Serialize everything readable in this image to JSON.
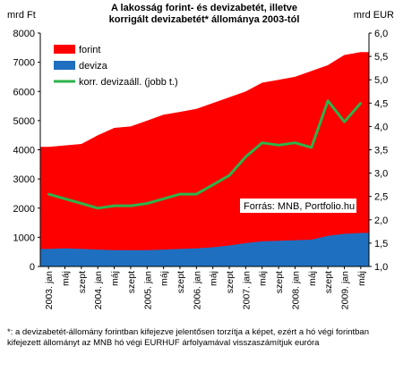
{
  "chart_data": {
    "type": "area",
    "title": "A lakosság forint- és devizabetét, illetve korrigált devizabetét* állománya 2003-tól",
    "title_lines": [
      "A lakosság forint- és devizabetét, illetve",
      "korrigált devizabetét* állománya 2003-tól"
    ],
    "ylabel_left": "mrd Ft",
    "ylabel_right": "mrd EUR",
    "ylim_left": [
      0,
      8000
    ],
    "ylim_right": [
      1.0,
      6.0
    ],
    "yticks_left": [
      "0",
      "1000",
      "2000",
      "3000",
      "4000",
      "5000",
      "6000",
      "7000",
      "8000"
    ],
    "yticks_right": [
      "1,0",
      "1,5",
      "2,0",
      "2,5",
      "3,0",
      "3,5",
      "4,0",
      "4,5",
      "5,0",
      "5,5",
      "6,0"
    ],
    "categories": [
      "2003. jan",
      "máj",
      "szept",
      "2004. jan",
      "máj",
      "szept",
      "2005. jan",
      "máj",
      "szept",
      "2006. jan",
      "máj",
      "szept",
      "2007. jan",
      "máj",
      "szept",
      "2008. jan",
      "máj",
      "szept",
      "2009. jan",
      "máj"
    ],
    "series": [
      {
        "name": "forint",
        "color": "#ff0000",
        "kind": "stacked-area",
        "axis": "left",
        "values": [
          4100,
          4150,
          4200,
          4500,
          4750,
          4800,
          5000,
          5200,
          5300,
          5400,
          5600,
          5800,
          6000,
          6300,
          6400,
          6500,
          6700,
          6900,
          7250,
          7350
        ]
      },
      {
        "name": "deviza",
        "color": "#1f6fc0",
        "kind": "area",
        "axis": "left",
        "values": [
          600,
          620,
          600,
          580,
          560,
          560,
          560,
          580,
          600,
          620,
          660,
          720,
          800,
          860,
          880,
          900,
          920,
          1050,
          1120,
          1150
        ]
      },
      {
        "name": "korr. devizaáll. (jobb t.)",
        "color": "#2db34a",
        "kind": "line",
        "axis": "right",
        "values": [
          2.55,
          2.45,
          2.35,
          2.25,
          2.3,
          2.3,
          2.35,
          2.45,
          2.55,
          2.55,
          2.75,
          2.95,
          3.35,
          3.65,
          3.6,
          3.65,
          3.55,
          4.55,
          4.1,
          4.5
        ]
      }
    ],
    "legend": [
      "forint",
      "deviza",
      "korr. devizaáll. (jobb t.)"
    ],
    "legend_position": "top-left",
    "annotation": "Forrás: MNB, Portfolio.hu",
    "grid": false
  },
  "footnote": "*: a devizabetét-állomány forintban kifejezve jelentősen torzítja a képet, ezért a hó végi forintban kifejezett állományt az MNB hó végi EURHUF árfolyamával visszaszámítjuk euróra"
}
